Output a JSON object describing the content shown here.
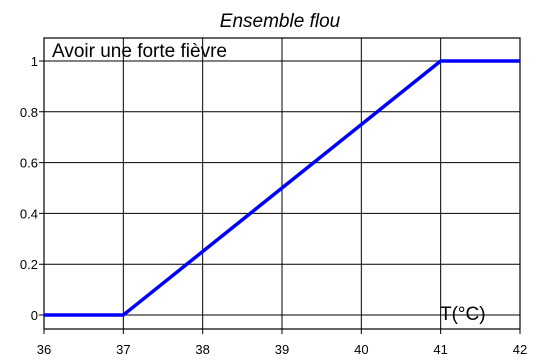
{
  "chart_data": {
    "type": "line",
    "title": "Ensemble flou",
    "annotation": "Avoir une forte fièvre",
    "xlabel": "T(°C)",
    "ylabel": "",
    "x_ticks": [
      "36",
      "37",
      "38",
      "39",
      "40",
      "41",
      "42"
    ],
    "y_ticks": [
      "0",
      "0.2",
      "0.4",
      "0.6",
      "0.8",
      "1"
    ],
    "xlim": [
      36,
      42
    ],
    "ylim": [
      0,
      1
    ],
    "grid": true,
    "series": [
      {
        "color": "#0000ff",
        "points": [
          {
            "x": 36,
            "y": 0
          },
          {
            "x": 37,
            "y": 0
          },
          {
            "x": 41,
            "y": 1
          },
          {
            "x": 42,
            "y": 1
          }
        ]
      }
    ]
  }
}
